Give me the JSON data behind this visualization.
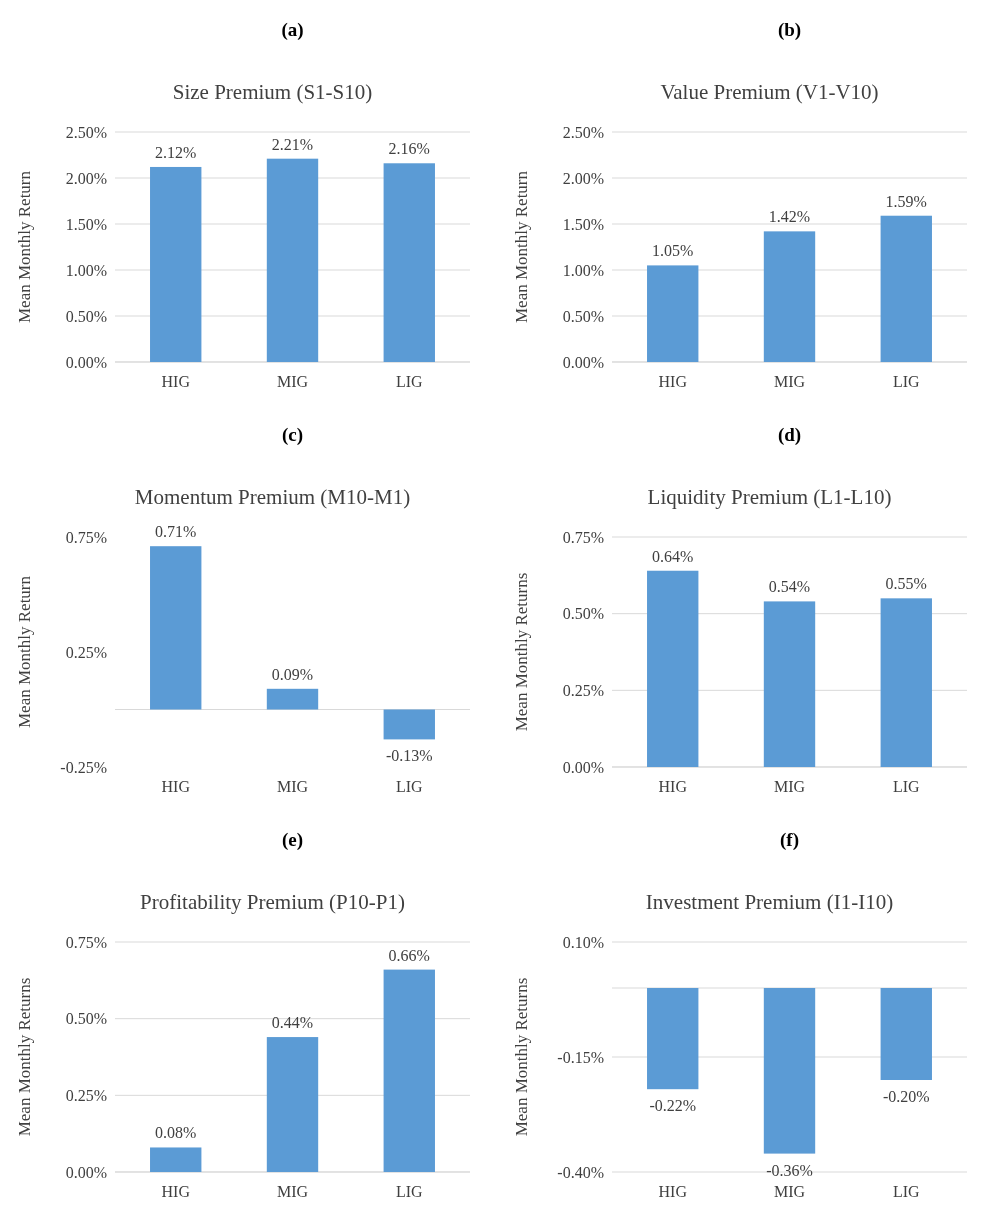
{
  "chart_data": [
    {
      "type": "bar",
      "annotations": [
        "(a)"
      ],
      "title": "Size Premium   (S1-S10)",
      "ylabel": "Mean Monthly Return",
      "categories": [
        "HIG",
        "MIG",
        "LIG"
      ],
      "values": [
        2.12,
        2.21,
        2.16
      ],
      "value_labels": [
        "2.12%",
        "2.21%",
        "2.16%"
      ],
      "color": "#5b9bd5",
      "ylim": [
        0,
        2.5
      ],
      "yticks": [
        {
          "value": 0,
          "label": "0.00%"
        },
        {
          "value": 0.5,
          "label": "0.50%"
        },
        {
          "value": 1,
          "label": "1.00%"
        },
        {
          "value": 1.5,
          "label": "1.50%"
        },
        {
          "value": 2,
          "label": "2.00%"
        },
        {
          "value": 2.5,
          "label": "2.50%"
        }
      ],
      "grid": "y"
    },
    {
      "type": "bar",
      "annotations": [
        "(b)"
      ],
      "title": "Value Premium (V1-V10)",
      "ylabel": "Mean Monthly Return",
      "categories": [
        "HIG",
        "MIG",
        "LIG"
      ],
      "values": [
        1.05,
        1.42,
        1.59
      ],
      "value_labels": [
        "1.05%",
        "1.42%",
        "1.59%"
      ],
      "color": "#5b9bd5",
      "ylim": [
        0,
        2.5
      ],
      "yticks": [
        {
          "value": 0,
          "label": "0.00%"
        },
        {
          "value": 0.5,
          "label": "0.50%"
        },
        {
          "value": 1,
          "label": "1.00%"
        },
        {
          "value": 1.5,
          "label": "1.50%"
        },
        {
          "value": 2,
          "label": "2.00%"
        },
        {
          "value": 2.5,
          "label": "2.50%"
        }
      ],
      "grid": "y"
    },
    {
      "type": "bar",
      "annotations": [
        "(c)"
      ],
      "title": "Momentum Premium   (M10-M1)",
      "ylabel": "Mean Monthly Return",
      "categories": [
        "HIG",
        "MIG",
        "LIG"
      ],
      "values": [
        0.71,
        0.09,
        -0.13
      ],
      "value_labels": [
        "0.71%",
        "0.09%",
        "-0.13%"
      ],
      "color": "#5b9bd5",
      "ylim": [
        -0.25,
        0.75
      ],
      "yticks": [
        {
          "value": -0.25,
          "label": "-0.25%"
        },
        {
          "value": 0.25,
          "label": "0.25%"
        },
        {
          "value": 0.75,
          "label": "0.75%"
        }
      ],
      "grid": false
    },
    {
      "type": "bar",
      "annotations": [
        "(d)"
      ],
      "title": "Liquidity Premium (L1-L10)",
      "ylabel": "Mean Monthly Returns",
      "categories": [
        "HIG",
        "MIG",
        "LIG"
      ],
      "values": [
        0.64,
        0.54,
        0.55
      ],
      "value_labels": [
        "0.64%",
        "0.54%",
        "0.55%"
      ],
      "color": "#5b9bd5",
      "ylim": [
        0,
        0.75
      ],
      "yticks": [
        {
          "value": 0,
          "label": "0.00%"
        },
        {
          "value": 0.25,
          "label": "0.25%"
        },
        {
          "value": 0.5,
          "label": "0.50%"
        },
        {
          "value": 0.75,
          "label": "0.75%"
        }
      ],
      "grid": "y"
    },
    {
      "type": "bar",
      "annotations": [
        "(e)"
      ],
      "title": "Profitability Premium  (P10-P1)",
      "ylabel": "Mean Monthly Returns",
      "categories": [
        "HIG",
        "MIG",
        "LIG"
      ],
      "values": [
        0.08,
        0.44,
        0.66
      ],
      "value_labels": [
        "0.08%",
        "0.44%",
        "0.66%"
      ],
      "color": "#5b9bd5",
      "ylim": [
        0,
        0.75
      ],
      "yticks": [
        {
          "value": 0,
          "label": "0.00%"
        },
        {
          "value": 0.25,
          "label": "0.25%"
        },
        {
          "value": 0.5,
          "label": "0.50%"
        },
        {
          "value": 0.75,
          "label": "0.75%"
        }
      ],
      "grid": "y"
    },
    {
      "type": "bar",
      "annotations": [
        "(f)"
      ],
      "title": "Investment Premium (I1-I10)",
      "ylabel": "Mean Monthly Returns",
      "categories": [
        "HIG",
        "MIG",
        "LIG"
      ],
      "values": [
        -0.22,
        -0.36,
        -0.2
      ],
      "value_labels": [
        "-0.22%",
        "-0.36%",
        "-0.20%"
      ],
      "color": "#5b9bd5",
      "ylim": [
        -0.4,
        0.1
      ],
      "yticks": [
        {
          "value": -0.4,
          "label": "-0.40%"
        },
        {
          "value": -0.15,
          "label": "-0.15%"
        },
        {
          "value": 0.1,
          "label": "0.10%"
        }
      ],
      "grid": "y"
    }
  ]
}
